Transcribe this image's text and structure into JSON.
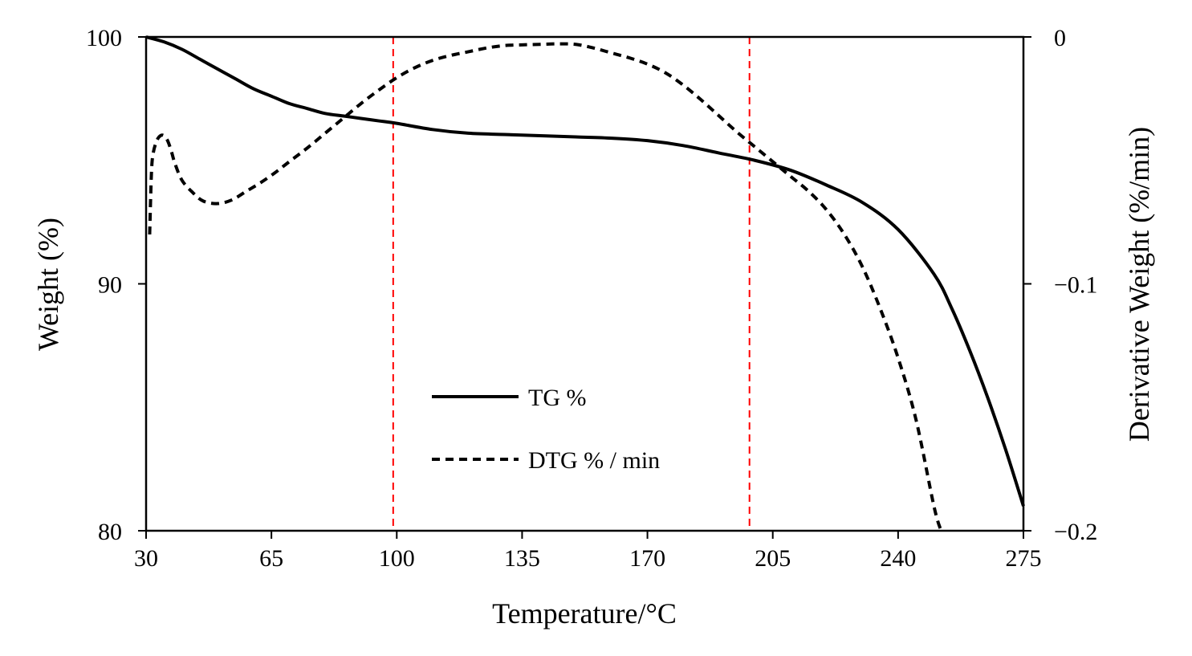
{
  "chart_data": {
    "type": "line",
    "title": "",
    "xlabel": "Temperature/°C",
    "ylabel_left": "Weight (%)",
    "ylabel_right": "Derivative Weight (%/min)",
    "xlim": [
      30,
      275
    ],
    "ylim_left": [
      80,
      100
    ],
    "ylim_right": [
      -0.2,
      0
    ],
    "x_ticks": [
      30,
      65,
      100,
      135,
      170,
      205,
      240,
      275
    ],
    "x_tick_labels": [
      "30",
      "65",
      "100",
      "135",
      "170",
      "205",
      "240",
      "275"
    ],
    "y_left_ticks": [
      80,
      90,
      100
    ],
    "y_left_tick_labels": [
      "80",
      "90",
      "100"
    ],
    "y_right_ticks": [
      -0.2,
      -0.1,
      0
    ],
    "y_right_tick_labels": [
      "−0.2",
      "−0.1",
      "0"
    ],
    "grid": false,
    "legend_position": "center-left",
    "reference_lines": [
      {
        "x": 99,
        "color": "#ff0000",
        "style": "dashed"
      },
      {
        "x": 198.5,
        "color": "#ff0000",
        "style": "dashed"
      }
    ],
    "series": [
      {
        "name": "TG %",
        "axis": "left",
        "style": "solid",
        "color": "#000000",
        "x": [
          30,
          35,
          40,
          45,
          50,
          55,
          60,
          65,
          70,
          75,
          80,
          85,
          90,
          95,
          100,
          110,
          120,
          130,
          140,
          150,
          160,
          170,
          180,
          190,
          200,
          210,
          220,
          230,
          240,
          250,
          255,
          260,
          265,
          270,
          275
        ],
        "values": [
          100.0,
          99.8,
          99.5,
          99.1,
          98.7,
          98.3,
          97.9,
          97.6,
          97.3,
          97.1,
          96.9,
          96.8,
          96.7,
          96.6,
          96.5,
          96.25,
          96.1,
          96.05,
          96.0,
          95.95,
          95.9,
          95.8,
          95.6,
          95.3,
          95.0,
          94.6,
          94.0,
          93.3,
          92.2,
          90.4,
          89.0,
          87.3,
          85.4,
          83.3,
          81.0
        ]
      },
      {
        "name": "DTG % / min",
        "axis": "right",
        "style": "dashed",
        "color": "#000000",
        "x": [
          31,
          31.5,
          32,
          33,
          34,
          35,
          36,
          37,
          38,
          40,
          43,
          46,
          50,
          54,
          58,
          62,
          66,
          70,
          75,
          80,
          85,
          90,
          95,
          100,
          105,
          110,
          115,
          120,
          125,
          130,
          135,
          140,
          145,
          150,
          155,
          160,
          165,
          170,
          175,
          180,
          185,
          190,
          195,
          200,
          205,
          210,
          215,
          220,
          225,
          230,
          235,
          240,
          245,
          250,
          252
        ],
        "values": [
          -0.08,
          -0.055,
          -0.047,
          -0.042,
          -0.04,
          -0.04,
          -0.042,
          -0.046,
          -0.051,
          -0.058,
          -0.063,
          -0.0665,
          -0.0675,
          -0.066,
          -0.0625,
          -0.059,
          -0.055,
          -0.0505,
          -0.045,
          -0.039,
          -0.033,
          -0.027,
          -0.0215,
          -0.0165,
          -0.0125,
          -0.0095,
          -0.0075,
          -0.006,
          -0.0045,
          -0.0035,
          -0.0032,
          -0.003,
          -0.0028,
          -0.003,
          -0.0045,
          -0.0065,
          -0.0085,
          -0.011,
          -0.0145,
          -0.0195,
          -0.0255,
          -0.032,
          -0.0385,
          -0.0445,
          -0.0505,
          -0.0565,
          -0.0625,
          -0.07,
          -0.08,
          -0.093,
          -0.11,
          -0.13,
          -0.155,
          -0.19,
          -0.2
        ]
      }
    ],
    "legend": [
      {
        "label": "TG %",
        "style": "solid"
      },
      {
        "label": "DTG % / min",
        "style": "dashed"
      }
    ]
  }
}
